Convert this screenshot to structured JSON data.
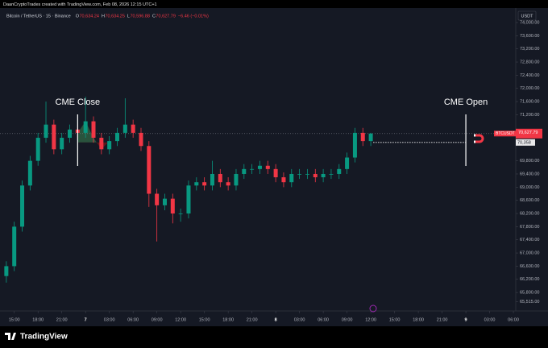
{
  "header": {
    "text": "DaanCryptoTrades created with TradingView.com, Feb 08, 2026 12:15 UTC+1"
  },
  "footer": {
    "brand": "TradingView"
  },
  "chart_data": {
    "type": "candlestick",
    "title": "Bitcoin / TetherUS · 15 · Binance",
    "ohlc_legend": [
      {
        "key": "O",
        "value": "70,634.24"
      },
      {
        "key": "H",
        "value": "70,634.25"
      },
      {
        "key": "L",
        "value": "70,596.88"
      },
      {
        "key": "C",
        "value": "70,627.79"
      }
    ],
    "change": "−6.46 (−0.01%)",
    "currency": "USDT",
    "up_color": "#089981",
    "down_color": "#f23645",
    "series": [
      {
        "name": "BTCUSDT",
        "open": [
          66300,
          66600,
          67800,
          69050,
          69800,
          70500,
          70900,
          70150,
          70500,
          70750,
          70650,
          71000,
          70500,
          70150,
          70400,
          70650,
          70900,
          70650,
          70250,
          68800,
          68450,
          68650,
          68200,
          68200,
          69050,
          69150,
          69050,
          69400,
          69150,
          69050,
          69400,
          69550,
          69550,
          69650,
          69550,
          69300,
          69150,
          69400,
          69400,
          69400,
          69300,
          69400,
          69400,
          69550,
          69900,
          70650,
          70400
        ],
        "high": [
          66750,
          67950,
          69200,
          69950,
          70650,
          71600,
          71050,
          70650,
          70900,
          70900,
          71750,
          71150,
          70650,
          70550,
          70800,
          71700,
          71050,
          70800,
          70400,
          68950,
          68800,
          68800,
          68350,
          69200,
          69300,
          69300,
          69800,
          69550,
          69300,
          69550,
          69700,
          69700,
          69800,
          69800,
          69700,
          69450,
          69550,
          69550,
          69550,
          69550,
          69550,
          69550,
          69700,
          70050,
          70800,
          70800,
          70650
        ],
        "low": [
          66100,
          66450,
          67650,
          68900,
          69650,
          70350,
          70000,
          70000,
          70350,
          70500,
          70500,
          70350,
          70000,
          70000,
          70250,
          70500,
          70500,
          70100,
          68400,
          67350,
          68300,
          67900,
          67950,
          68050,
          68900,
          68900,
          68900,
          69000,
          68900,
          68900,
          69250,
          69400,
          69400,
          69400,
          69150,
          69000,
          69000,
          69250,
          69250,
          69150,
          69150,
          69250,
          69250,
          69400,
          69750,
          70250,
          70250
        ],
        "close": [
          66600,
          67800,
          69050,
          69800,
          70500,
          70900,
          70150,
          70500,
          70750,
          70650,
          71000,
          70500,
          70150,
          70400,
          70650,
          70900,
          70650,
          70250,
          68800,
          68450,
          68650,
          68200,
          68200,
          69050,
          69150,
          69050,
          69400,
          69150,
          69050,
          69400,
          69550,
          69550,
          69650,
          69550,
          69300,
          69150,
          69400,
          69400,
          69400,
          69300,
          69400,
          69400,
          69550,
          69900,
          70650,
          70400,
          70627.79
        ]
      }
    ],
    "xlim": [
      -0.8,
      64.3
    ],
    "xticks": [
      {
        "value": 1,
        "label": "15:00"
      },
      {
        "value": 4,
        "label": "18:00"
      },
      {
        "value": 7,
        "label": "21:00"
      },
      {
        "value": 10,
        "label": "7"
      },
      {
        "value": 13,
        "label": "03:00"
      },
      {
        "value": 16,
        "label": "06:00"
      },
      {
        "value": 19,
        "label": "09:00"
      },
      {
        "value": 22,
        "label": "12:00"
      },
      {
        "value": 25,
        "label": "15:00"
      },
      {
        "value": 28,
        "label": "18:00"
      },
      {
        "value": 31,
        "label": "21:00"
      },
      {
        "value": 34,
        "label": "8"
      },
      {
        "value": 37,
        "label": "03:00"
      },
      {
        "value": 40,
        "label": "06:00"
      },
      {
        "value": 43,
        "label": "09:00"
      },
      {
        "value": 46,
        "label": "12:00"
      },
      {
        "value": 49,
        "label": "15:00"
      },
      {
        "value": 52,
        "label": "18:00"
      },
      {
        "value": 55,
        "label": "21:00"
      },
      {
        "value": 58,
        "label": "9"
      },
      {
        "value": 61,
        "label": "03:00"
      },
      {
        "value": 64,
        "label": "06:00"
      }
    ],
    "ylim": [
      65240,
      74440
    ],
    "yticks": [
      {
        "value": 74000,
        "label": "74,000.00"
      },
      {
        "value": 73600,
        "label": "73,600.00"
      },
      {
        "value": 73200,
        "label": "73,200.00"
      },
      {
        "value": 72800,
        "label": "72,800.00"
      },
      {
        "value": 72400,
        "label": "72,400.00"
      },
      {
        "value": 72000,
        "label": "72,000.00"
      },
      {
        "value": 71600,
        "label": "71,600.00"
      },
      {
        "value": 71200,
        "label": "71,200.00"
      },
      {
        "value": 69800,
        "label": "69,800.00"
      },
      {
        "value": 69400,
        "label": "69,400.00"
      },
      {
        "value": 69000,
        "label": "69,000.00"
      },
      {
        "value": 68600,
        "label": "68,600.00"
      },
      {
        "value": 68200,
        "label": "68,200.00"
      },
      {
        "value": 67800,
        "label": "67,800.00"
      },
      {
        "value": 67400,
        "label": "67,400.00"
      },
      {
        "value": 67000,
        "label": "67,000.00"
      },
      {
        "value": 66600,
        "label": "66,600.00"
      },
      {
        "value": 66200,
        "label": "66,200.00"
      },
      {
        "value": 65800,
        "label": "65,800.00"
      },
      {
        "value": 65515,
        "label": "65,515.00"
      }
    ],
    "annotations": [
      {
        "text": "CME Close",
        "x": 9
      },
      {
        "text": "CME Open",
        "x": 58
      }
    ],
    "price_lines": [
      {
        "value": 70627.79,
        "label": "70,627.79",
        "color": "#f23645"
      },
      {
        "value": 70358,
        "label": "70,358",
        "color": "#e8e8ea"
      }
    ],
    "fill_colors": {
      "above": "#2b5a40",
      "below": "#6a1519"
    }
  }
}
